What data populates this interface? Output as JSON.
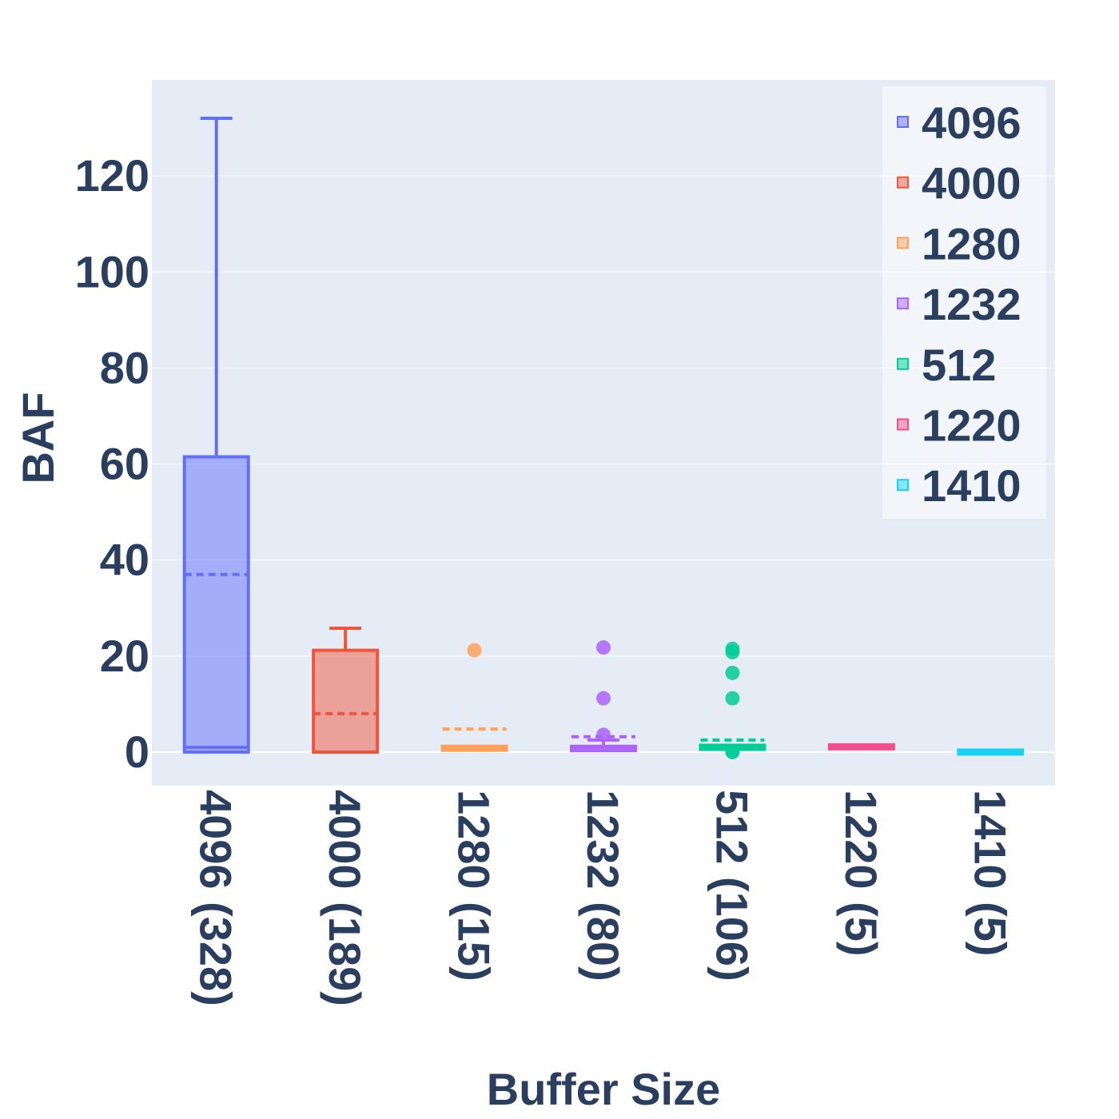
{
  "chart_data": {
    "type": "box",
    "xlabel": "Buffer Size",
    "ylabel": "BAF",
    "y_ticks": [
      0,
      20,
      40,
      60,
      80,
      100,
      120
    ],
    "ylim": [
      -7,
      140
    ],
    "grid": true,
    "legend_position": "top-right",
    "categories": [
      "4096 (328)",
      "4000 (189)",
      "1280 (15)",
      "1232 (80)",
      "512 (106)",
      "1220 (5)",
      "1410 (5)"
    ],
    "series": [
      {
        "name": "4096",
        "color": "#636efa",
        "q1": 0,
        "median": 1,
        "q3": 61.5,
        "lower_whisker": 0,
        "upper_whisker": 132,
        "mean": 37,
        "outliers": []
      },
      {
        "name": "4000",
        "color": "#ef553b",
        "q1": 0,
        "median": 0,
        "q3": 21.2,
        "lower_whisker": 0,
        "upper_whisker": 25.8,
        "mean": 8,
        "outliers": []
      },
      {
        "name": "1280",
        "color": "#ffa15a",
        "q1": 0.4,
        "median": 1,
        "q3": 1.2,
        "lower_whisker": 0.4,
        "upper_whisker": 1.2,
        "mean": 4.8,
        "outliers": [
          21.2
        ]
      },
      {
        "name": "1232",
        "color": "#ab63fa",
        "q1": 0.3,
        "median": 1,
        "q3": 1.2,
        "lower_whisker": 0.3,
        "upper_whisker": 2.5,
        "mean": 3.2,
        "outliers": [
          21.8,
          11.2,
          3.6
        ]
      },
      {
        "name": "512",
        "color": "#00cc96",
        "q1": 0.8,
        "median": 1,
        "q3": 1.2,
        "lower_whisker": 0.8,
        "upper_whisker": 1.2,
        "mean": 2.5,
        "outliers": [
          21.5,
          20.8,
          16.5,
          11.2,
          0.2,
          0
        ]
      },
      {
        "name": "1220",
        "color": "#ef4f8a",
        "q1": 1,
        "median": 1,
        "q3": 1.2,
        "lower_whisker": 1,
        "upper_whisker": 1.2,
        "mean": 1.1,
        "outliers": []
      },
      {
        "name": "1410",
        "color": "#19d3f3",
        "q1": 0,
        "median": 0,
        "q3": 0,
        "lower_whisker": 0,
        "upper_whisker": 0,
        "mean": 0,
        "outliers": []
      }
    ]
  }
}
